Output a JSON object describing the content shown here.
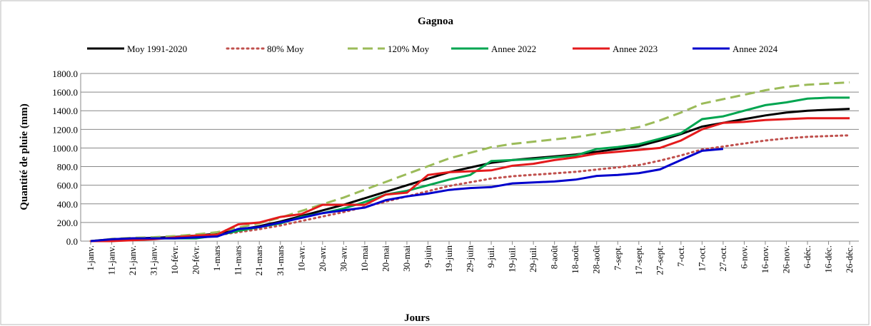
{
  "chart_data": {
    "type": "line",
    "title": "Gagnoa",
    "x_label": "Jours",
    "y_label": "Quantité de pluie (mm)",
    "categories": [
      "1-janv.",
      "11-janv.",
      "21-janv.",
      "31-janv.",
      "10-févr.",
      "20-févr.",
      "1-mars",
      "11-mars",
      "21-mars",
      "31-mars",
      "10-avr.",
      "20-avr.",
      "30-avr.",
      "10-mai",
      "20-mai",
      "30-mai",
      "9-juin",
      "19-juin",
      "29-juin",
      "9-juil.",
      "19-juil.",
      "29-juil.",
      "8-août",
      "18-août",
      "28-août",
      "7-sept.",
      "17-sept.",
      "27-sept.",
      "7-oct.",
      "17-oct.",
      "27-oct.",
      "6-nov.",
      "16-nov.",
      "26-nov.",
      "6-déc.",
      "16-déc.",
      "26-déc."
    ],
    "ylim": [
      0,
      1800
    ],
    "yticks": [
      {
        "value": 0,
        "label": "0.0"
      },
      {
        "value": 200,
        "label": "200.0"
      },
      {
        "value": 400,
        "label": "400.0"
      },
      {
        "value": 600,
        "label": "600.0"
      },
      {
        "value": 800,
        "label": "800.0"
      },
      {
        "value": 1000,
        "label": "1000.0"
      },
      {
        "value": 1200,
        "label": "1200.0"
      },
      {
        "value": 1400,
        "label": "1400.0"
      },
      {
        "value": 1600,
        "label": "1600.0"
      },
      {
        "value": 1800,
        "label": "1800.0"
      }
    ],
    "grid": true,
    "legend": "top",
    "series": [
      {
        "name": "Moy 1991-2020",
        "color": "#000000",
        "style": "solid",
        "values": [
          0,
          20,
          30,
          35,
          45,
          60,
          80,
          120,
          160,
          210,
          270,
          330,
          390,
          460,
          530,
          600,
          670,
          740,
          790,
          840,
          870,
          890,
          910,
          930,
          960,
          990,
          1020,
          1080,
          1150,
          1230,
          1270,
          1310,
          1350,
          1380,
          1400,
          1410,
          1420
        ]
      },
      {
        "name": "80% Moy",
        "color": "#c0504d",
        "style": "dotted",
        "values": [
          0,
          16,
          24,
          28,
          36,
          48,
          64,
          96,
          128,
          168,
          216,
          264,
          312,
          368,
          424,
          480,
          536,
          592,
          632,
          672,
          696,
          712,
          728,
          744,
          768,
          792,
          816,
          864,
          920,
          984,
          1016,
          1048,
          1080,
          1104,
          1120,
          1128,
          1136
        ]
      },
      {
        "name": "120% Moy",
        "color": "#9bbb59",
        "style": "dashed",
        "values": [
          0,
          24,
          36,
          42,
          54,
          72,
          96,
          144,
          192,
          252,
          324,
          396,
          468,
          552,
          636,
          720,
          804,
          888,
          948,
          1008,
          1044,
          1068,
          1092,
          1116,
          1152,
          1188,
          1224,
          1296,
          1380,
          1476,
          1524,
          1572,
          1620,
          1656,
          1680,
          1692,
          1704
        ]
      },
      {
        "name": "Annee 2022",
        "color": "#00a550",
        "style": "solid",
        "values": [
          0,
          0,
          20,
          30,
          30,
          30,
          60,
          110,
          150,
          190,
          260,
          300,
          350,
          420,
          500,
          540,
          600,
          660,
          710,
          860,
          870,
          880,
          900,
          920,
          990,
          1010,
          1040,
          1100,
          1160,
          1310,
          1340,
          1400,
          1460,
          1490,
          1530,
          1540,
          1540
        ]
      },
      {
        "name": "Annee 2023",
        "color": "#e41a1c",
        "style": "solid",
        "values": [
          0,
          0,
          10,
          20,
          40,
          60,
          70,
          180,
          200,
          260,
          290,
          390,
          390,
          390,
          500,
          520,
          710,
          740,
          750,
          760,
          810,
          830,
          870,
          900,
          940,
          960,
          980,
          1000,
          1080,
          1200,
          1270,
          1280,
          1300,
          1310,
          1320,
          1320,
          1320
        ]
      },
      {
        "name": "Annee 2024",
        "color": "#0000cc",
        "style": "solid",
        "values": [
          0,
          20,
          30,
          30,
          30,
          40,
          50,
          130,
          150,
          200,
          250,
          300,
          330,
          360,
          440,
          480,
          510,
          550,
          570,
          580,
          620,
          630,
          640,
          660,
          700,
          710,
          730,
          770,
          870,
          970,
          990,
          null,
          null,
          null,
          null,
          null,
          null
        ]
      }
    ]
  }
}
